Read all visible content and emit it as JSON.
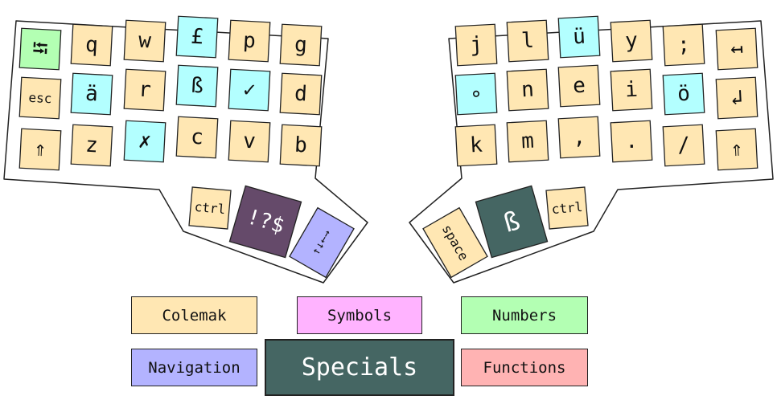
{
  "colors": {
    "colemak": "#ffe7b3",
    "symbols": "#ffb3ff",
    "numbers": "#b3ffb3",
    "navigation": "#b3b3ff",
    "specials": "#456663",
    "functions": "#ffb3b3",
    "cyan": "#b3ffff",
    "thumb_purple": "#654a6a"
  },
  "left_half": {
    "keys": [
      "⭾",
      "q",
      "w",
      "£",
      "p",
      "g",
      "esc",
      "ä",
      "r",
      "ß",
      "✓",
      "d",
      "⇑",
      "z",
      "✗",
      "c",
      "v",
      "b"
    ],
    "thumbs": [
      "ctrl",
      "!?$",
      "↑↓←→"
    ]
  },
  "right_half": {
    "keys": [
      "j",
      "l",
      "ü",
      "y",
      ";",
      "↤",
      "∘",
      "n",
      "e",
      "i",
      "ö",
      "↲",
      "k",
      "m",
      ",",
      ".",
      "/",
      "⇑"
    ],
    "thumbs": [
      "space",
      "ß",
      "ctrl"
    ]
  },
  "legend": {
    "colemak": "Colemak",
    "symbols": "Symbols",
    "numbers": "Numbers",
    "navigation": "Navigation",
    "specials": "Specials",
    "functions": "Functions"
  }
}
